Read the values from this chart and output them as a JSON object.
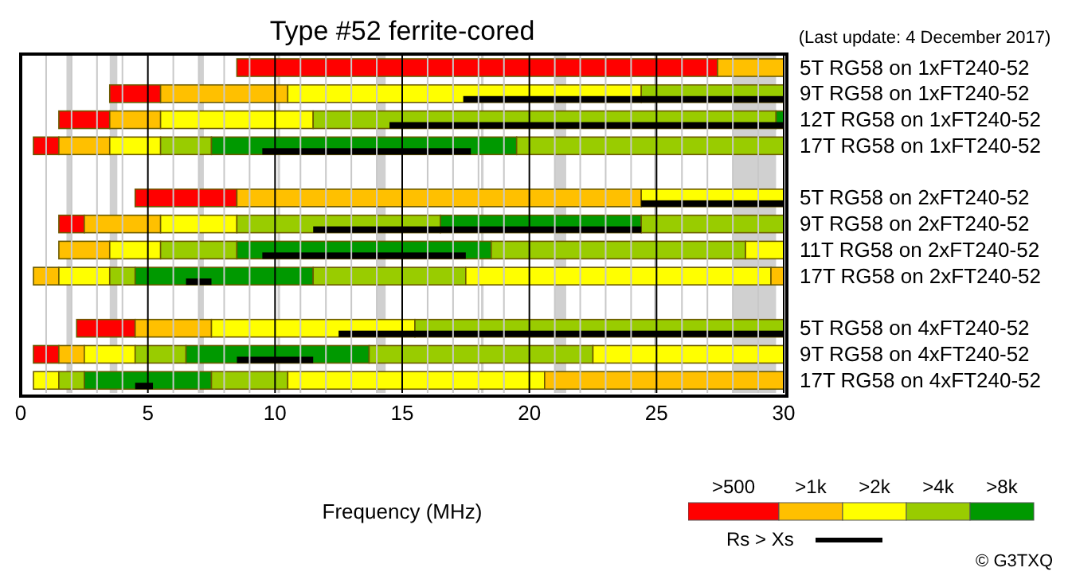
{
  "chart_data": {
    "type": "bar",
    "orientation": "horizontal",
    "title": "Type #52 ferrite-cored",
    "xlabel": "Frequency (MHz)",
    "annotations": [
      "(Last update: 4 December 2017)",
      "© G3TXQ"
    ],
    "categories": [
      "5T RG58 on 1xFT240-52",
      "9T RG58 on 1xFT240-52",
      "12T RG58 on 1xFT240-52",
      "17T RG58 on 1xFT240-52",
      null,
      "5T RG58 on 2xFT240-52",
      "9T RG58 on 2xFT240-52",
      "11T RG58 on 2xFT240-52",
      "17T RG58 on 2xFT240-52",
      null,
      "5T RG58 on 4xFT240-52",
      "9T RG58 on 4xFT240-52",
      "17T RG58 on 4xFT240-52"
    ],
    "series": [
      {
        "name": ">500",
        "color": "#ff0000",
        "base": [
          8.5,
          3.5,
          1.5,
          0.5,
          null,
          4.5,
          1.5,
          null,
          null,
          null,
          2.2,
          0.5,
          null
        ],
        "values": [
          18.9,
          2,
          2,
          1,
          null,
          4,
          1,
          null,
          null,
          null,
          2.3,
          1,
          null
        ]
      },
      {
        "name": ">1k",
        "color": "#ffc000",
        "base": [
          27.4,
          5.5,
          3.5,
          1.5,
          null,
          8.5,
          2.5,
          1.5,
          0.5,
          null,
          4.5,
          1.5,
          null
        ],
        "values": [
          2.6,
          5,
          2,
          2,
          null,
          15.9,
          3,
          2,
          1,
          null,
          3,
          1,
          null
        ]
      },
      {
        "name": ">2k",
        "color": "#ffff00",
        "base": [
          null,
          10.5,
          5.5,
          3.5,
          null,
          24.4,
          5.5,
          3.5,
          1.5,
          null,
          7.5,
          2.5,
          0.5
        ],
        "values": [
          null,
          13.9,
          6,
          2,
          null,
          5.6,
          3,
          2,
          2,
          null,
          8,
          2,
          1
        ]
      },
      {
        "name": ">4k",
        "color": "#99cc00",
        "base": [
          null,
          24.4,
          11.5,
          5.5,
          null,
          null,
          8.5,
          5.5,
          3.5,
          null,
          15.5,
          4.5,
          1.5
        ],
        "values": [
          null,
          5.6,
          18.2,
          2,
          null,
          null,
          8,
          3,
          1,
          null,
          14.5,
          2,
          1
        ]
      },
      {
        "name": ">8k",
        "color": "#009900",
        "base": [
          null,
          null,
          29.7,
          7.5,
          null,
          null,
          16.5,
          8.5,
          4.5,
          null,
          null,
          6.5,
          2.5
        ],
        "values": [
          null,
          null,
          0.3,
          12,
          null,
          null,
          7.9,
          10,
          7,
          null,
          null,
          7.2,
          5
        ]
      },
      {
        "color": "#99cc00",
        "base": [
          null,
          null,
          null,
          19.5,
          null,
          null,
          24.4,
          18.5,
          11.5,
          null,
          null,
          13.7,
          7.5
        ],
        "values": [
          null,
          null,
          null,
          10.5,
          null,
          null,
          5.6,
          10,
          6,
          null,
          null,
          8.8,
          3
        ]
      },
      {
        "color": "#ffff00",
        "base": [
          null,
          null,
          null,
          null,
          null,
          null,
          null,
          28.5,
          17.5,
          null,
          null,
          22.5,
          10.5
        ],
        "values": [
          null,
          null,
          null,
          null,
          null,
          null,
          null,
          1.5,
          12,
          null,
          null,
          7.5,
          10.1
        ]
      },
      {
        "color": "#ffc000",
        "base": [
          null,
          null,
          null,
          null,
          null,
          null,
          null,
          null,
          29.5,
          null,
          null,
          null,
          20.6
        ],
        "values": [
          null,
          null,
          null,
          null,
          null,
          null,
          null,
          null,
          0.5,
          null,
          null,
          null,
          9.4
        ]
      },
      {
        "name": "Rs > Xs",
        "type": "bar",
        "color": "#000000",
        "base": [
          null,
          17.4,
          14.5,
          9.5,
          null,
          24.4,
          11.5,
          9.5,
          6.5,
          null,
          12.5,
          8.5,
          4.5
        ],
        "values": [
          null,
          12.6,
          15.5,
          8.2,
          null,
          5.6,
          12.9,
          8,
          1,
          null,
          17.5,
          3,
          0.7
        ]
      }
    ],
    "xlim": [
      0,
      30
    ],
    "xticks": [
      0,
      {
        "value": 1,
        "label": null
      },
      {
        "value": 2,
        "label": null
      },
      {
        "value": 3,
        "label": null
      },
      {
        "value": 4,
        "label": null
      },
      5,
      {
        "value": 6,
        "label": null
      },
      {
        "value": 7,
        "label": null
      },
      {
        "value": 8,
        "label": null
      },
      {
        "value": 9,
        "label": null
      },
      10,
      {
        "value": 11,
        "label": null
      },
      {
        "value": 12,
        "label": null
      },
      {
        "value": 13,
        "label": null
      },
      {
        "value": 14,
        "label": null
      },
      15,
      {
        "value": 16,
        "label": null
      },
      {
        "value": 17,
        "label": null
      },
      {
        "value": 18,
        "label": null
      },
      {
        "value": 19,
        "label": null
      },
      20,
      {
        "value": 21,
        "label": null
      },
      {
        "value": 22,
        "label": null
      },
      {
        "value": 23,
        "label": null
      },
      {
        "value": 24,
        "label": null
      },
      25,
      {
        "value": 26,
        "label": null
      },
      {
        "value": 27,
        "label": null
      },
      {
        "value": 28,
        "label": null
      },
      {
        "value": 29,
        "label": null
      },
      30
    ],
    "bands": [
      {
        "axis": "x",
        "from": 1.8,
        "to": 2.0,
        "color": "#d0d0d0"
      },
      {
        "axis": "x",
        "from": 3.5,
        "to": 3.8,
        "color": "#d0d0d0"
      },
      {
        "axis": "x",
        "from": 7.0,
        "to": 7.2,
        "color": "#d0d0d0"
      },
      {
        "axis": "x",
        "from": 10.1,
        "to": 10.2,
        "color": "#d0d0d0"
      },
      {
        "axis": "x",
        "from": 14.0,
        "to": 14.35,
        "color": "#d0d0d0"
      },
      {
        "axis": "x",
        "from": 18.1,
        "to": 18.2,
        "color": "#d0d0d0"
      },
      {
        "axis": "x",
        "from": 21.0,
        "to": 21.45,
        "color": "#d0d0d0"
      },
      {
        "axis": "x",
        "from": 24.9,
        "to": 25.0,
        "color": "#d0d0d0"
      },
      {
        "axis": "x",
        "from": 28.0,
        "to": 29.7,
        "color": "#d0d0d0"
      }
    ],
    "grid": "x",
    "legend": "bottom right"
  }
}
